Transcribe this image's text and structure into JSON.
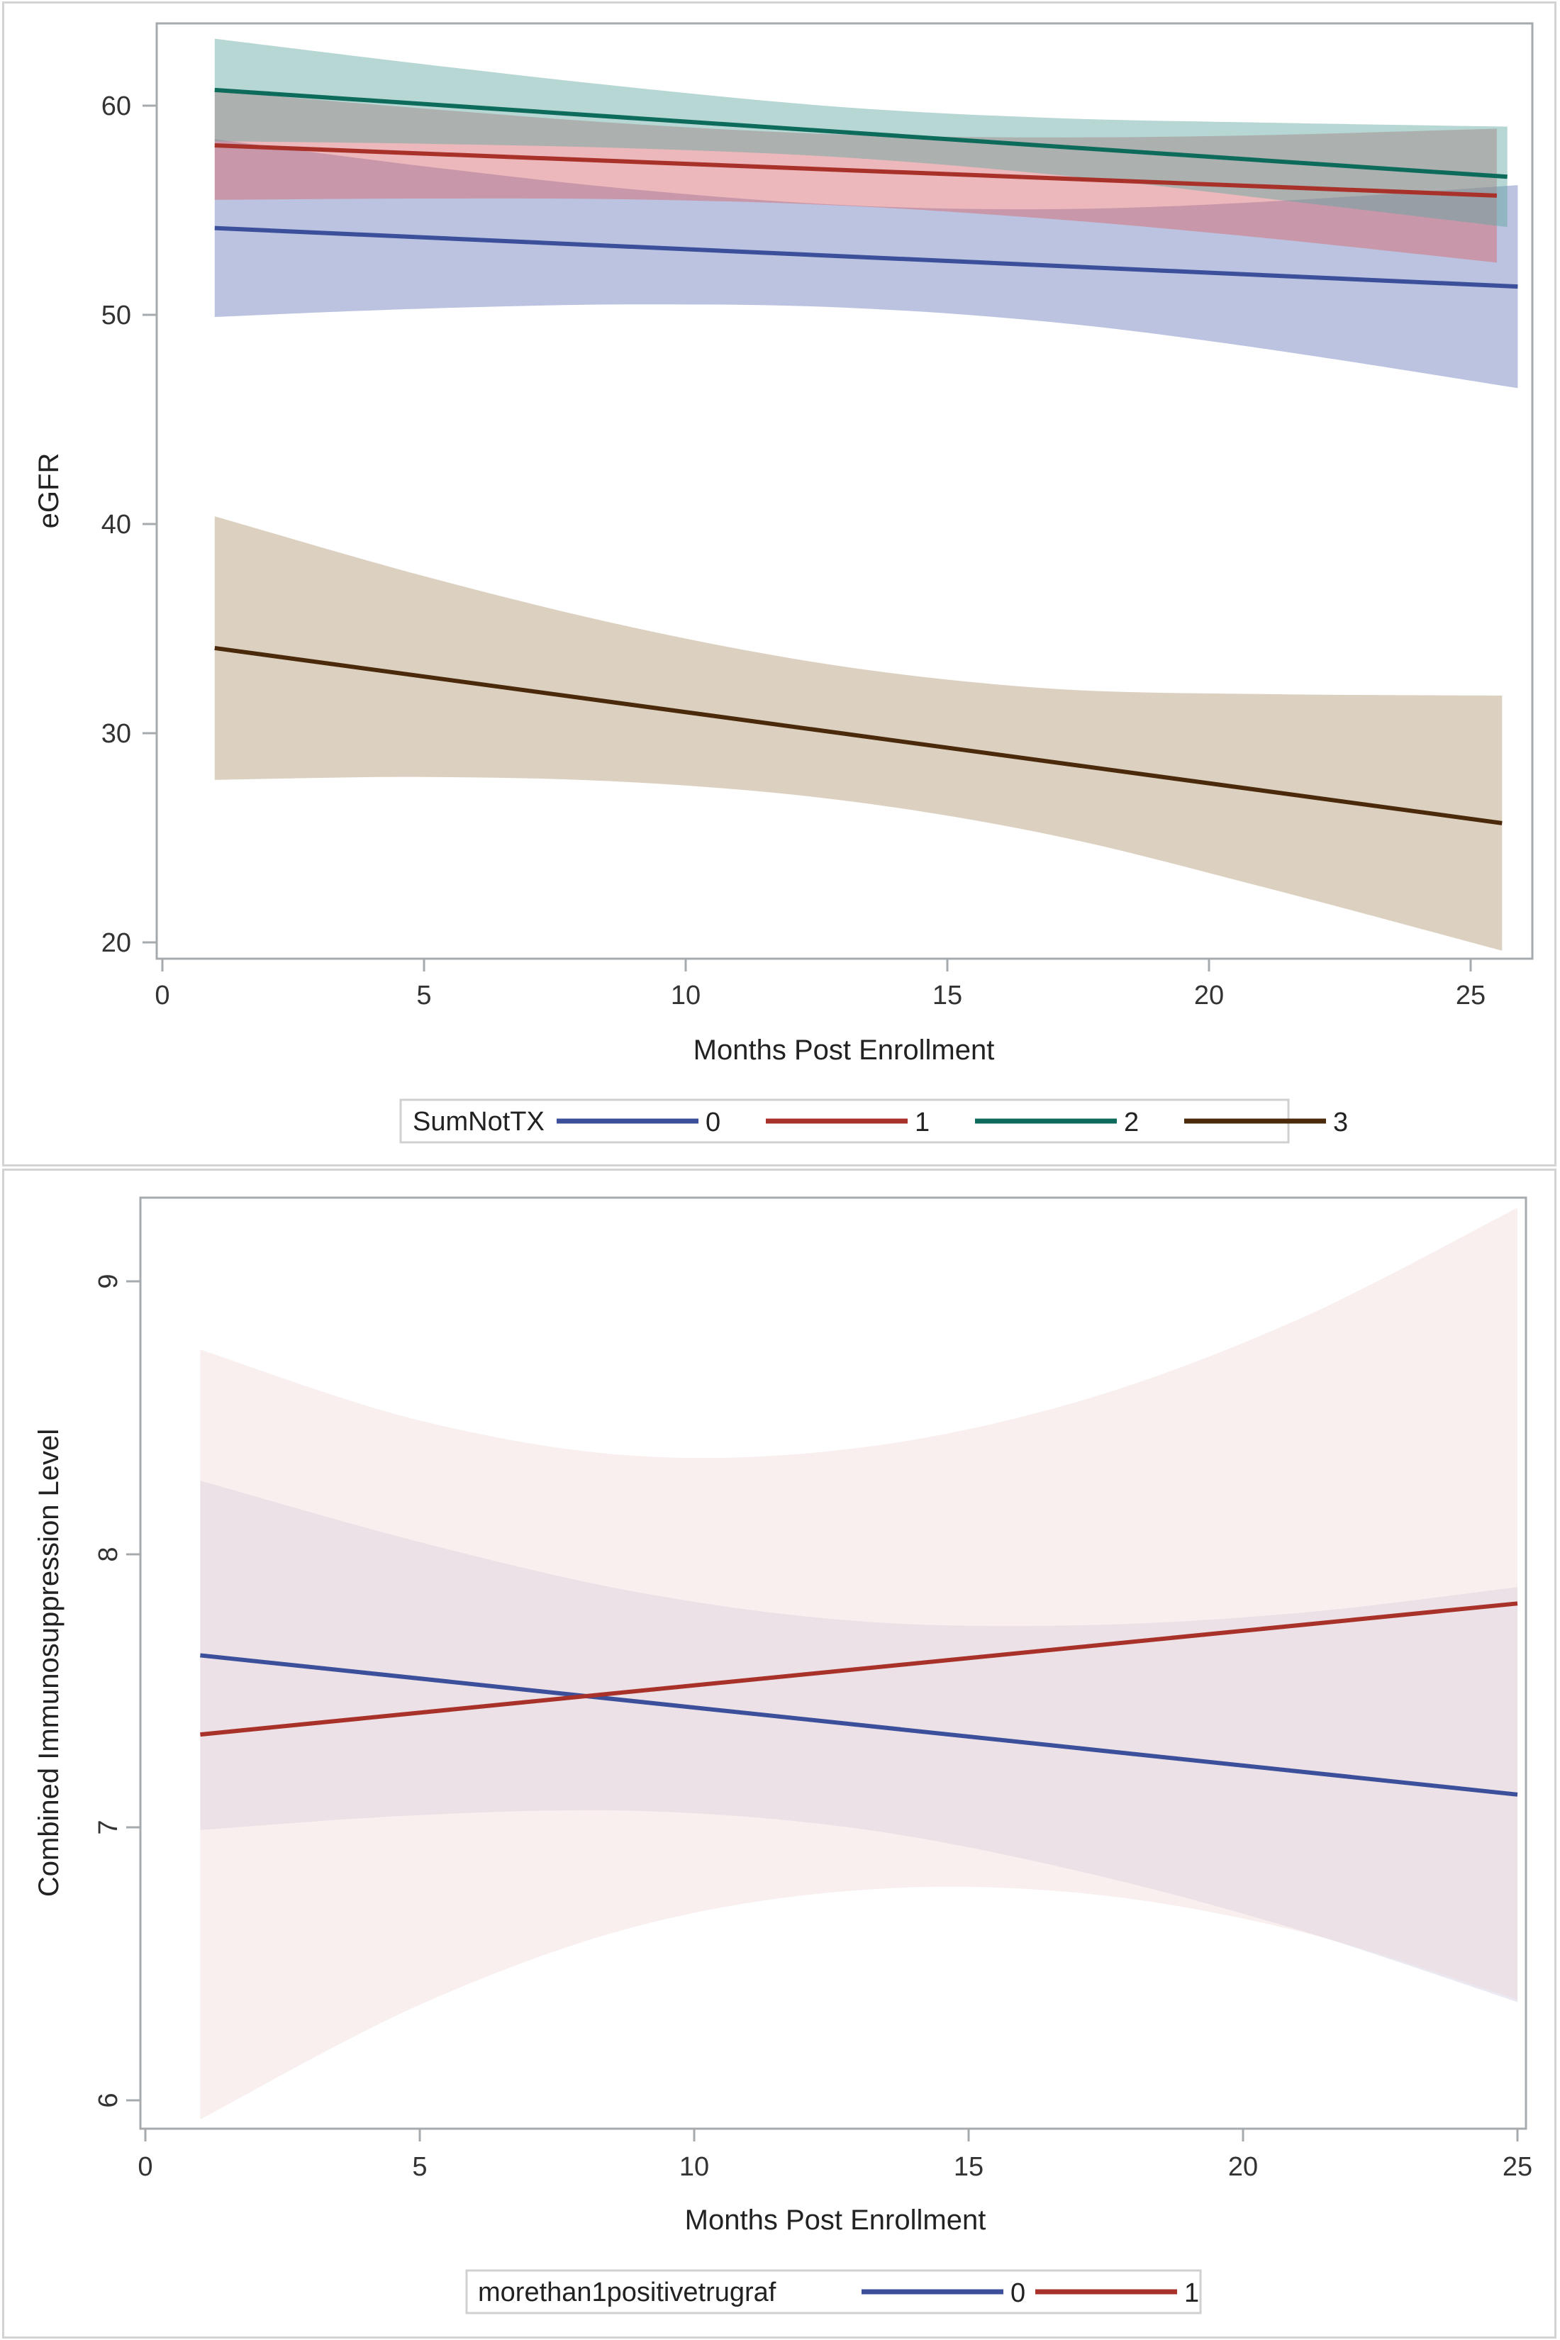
{
  "chart_data": [
    {
      "type": "line",
      "title": "",
      "xlabel": "Months Post Enrollment",
      "ylabel": "eGFR",
      "xlim": [
        0,
        26
      ],
      "ylim": [
        19,
        64.5
      ],
      "xticks": [
        "0",
        "5",
        "10",
        "15",
        "20",
        "25"
      ],
      "yticks": [
        "20",
        "30",
        "40",
        "50",
        "60"
      ],
      "grid": false,
      "legend": {
        "title": "SumNotTX",
        "placement": "bottom-center",
        "entries": [
          "0",
          "1",
          "2",
          "3"
        ]
      },
      "band_x": [
        1,
        5,
        9,
        13,
        17,
        21,
        "end"
      ],
      "series": [
        {
          "name": "0",
          "line_color": "#3b4f9b",
          "band_color": "#6a7cbb",
          "x": [
            1,
            25.9
          ],
          "values": [
            54.15,
            51.35
          ],
          "band_x": [
            1,
            5,
            9,
            13,
            17,
            21,
            25.9
          ],
          "upper": [
            58.4,
            57.1,
            56.0,
            55.25,
            55.05,
            55.4,
            56.2
          ],
          "lower": [
            49.9,
            50.3,
            50.5,
            50.35,
            49.65,
            48.4,
            46.5
          ]
        },
        {
          "name": "1",
          "line_color": "#a8322a",
          "band_color": "#d8646a",
          "x": [
            1,
            25.5
          ],
          "values": [
            58.1,
            55.7
          ],
          "band_x": [
            1,
            5,
            9,
            13,
            17,
            21,
            25.5
          ],
          "upper": [
            60.7,
            59.86,
            59.12,
            58.62,
            58.48,
            58.59,
            58.9
          ],
          "lower": [
            55.5,
            55.56,
            55.52,
            55.22,
            54.58,
            53.69,
            52.5
          ]
        },
        {
          "name": "2",
          "line_color": "#0d6b5c",
          "band_color": "#5fa7a0",
          "x": [
            1,
            25.7
          ],
          "values": [
            60.75,
            56.6
          ],
          "band_x": [
            1,
            5,
            9,
            13,
            17,
            21,
            25.7
          ],
          "upper": [
            63.2,
            61.98,
            60.86,
            59.93,
            59.41,
            59.19,
            59.0
          ],
          "lower": [
            58.3,
            58.18,
            57.96,
            57.53,
            56.71,
            55.59,
            54.2
          ]
        },
        {
          "name": "3",
          "line_color": "#4a2a0a",
          "band_color": "#b39a75",
          "x": [
            1,
            25.6
          ],
          "values": [
            34.07,
            25.7
          ],
          "band_x": [
            1,
            5,
            9,
            13,
            17,
            21,
            25.6
          ],
          "upper": [
            40.37,
            37.51,
            35.05,
            33.19,
            32.13,
            31.87,
            31.8
          ],
          "lower": [
            27.77,
            27.91,
            27.65,
            26.79,
            25.13,
            22.67,
            19.6
          ]
        }
      ]
    },
    {
      "type": "line",
      "title": "",
      "xlabel": "Months Post Enrollment",
      "ylabel": "Combined Immunosuppression Level",
      "xlim": [
        0,
        25.2
      ],
      "ylim": [
        5.9,
        9.3
      ],
      "xticks": [
        "0",
        "5",
        "10",
        "15",
        "20",
        "25"
      ],
      "yticks": [
        "6",
        "7",
        "8",
        "9"
      ],
      "grid": false,
      "legend": {
        "title": "morethan1positivetrugraf",
        "placement": "bottom-center",
        "entries": [
          "0",
          "1"
        ]
      },
      "series": [
        {
          "name": "0",
          "line_color": "#3b4f9b",
          "band_color": "#c9c4de",
          "x": [
            1,
            25
          ],
          "values": [
            7.63,
            7.12
          ],
          "band_x": [
            1,
            5,
            9,
            13,
            17,
            21,
            25
          ],
          "upper": [
            8.27,
            8.045,
            7.86,
            7.755,
            7.74,
            7.785,
            7.88
          ],
          "lower": [
            6.99,
            7.045,
            7.06,
            6.995,
            6.84,
            6.625,
            6.36
          ]
        },
        {
          "name": "1",
          "line_color": "#a8322a",
          "band_color": "#efd4d4",
          "x": [
            1,
            25
          ],
          "values": [
            7.34,
            7.82
          ],
          "band_x": [
            1,
            5,
            9,
            13,
            17,
            21,
            25
          ],
          "upper": [
            8.75,
            8.49,
            8.36,
            8.39,
            8.56,
            8.86,
            9.27
          ],
          "lower": [
            5.93,
            6.35,
            6.64,
            6.77,
            6.76,
            6.62,
            6.37
          ]
        }
      ]
    }
  ]
}
